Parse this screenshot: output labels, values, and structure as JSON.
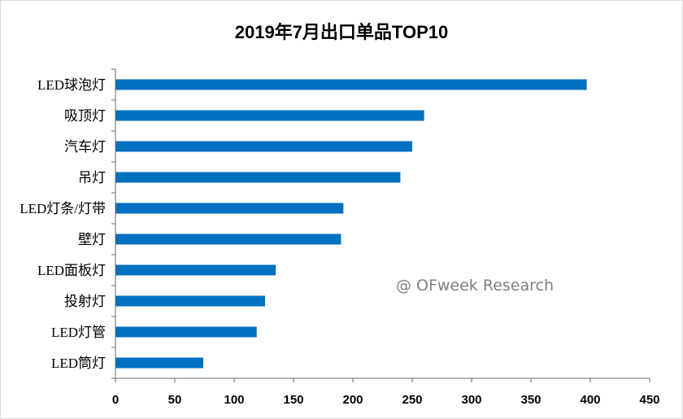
{
  "chart_data": {
    "type": "bar",
    "orientation": "horizontal",
    "title": "2019年7月出口单品TOP10",
    "watermark": "@ OFweek Research",
    "categories": [
      "LED球泡灯",
      "吸顶灯",
      "汽车灯",
      "吊灯",
      "LED灯条/灯带",
      "壁灯",
      "LED面板灯",
      "投射灯",
      "LED灯管",
      "LED筒灯"
    ],
    "values": [
      397,
      260,
      250,
      240,
      192,
      190,
      135,
      126,
      119,
      74
    ],
    "xlim": [
      0,
      450
    ],
    "xticks": [
      0,
      50,
      100,
      150,
      200,
      250,
      300,
      350,
      400,
      450
    ],
    "grid": false,
    "legend": "none",
    "bar_color": "#0070C0"
  }
}
